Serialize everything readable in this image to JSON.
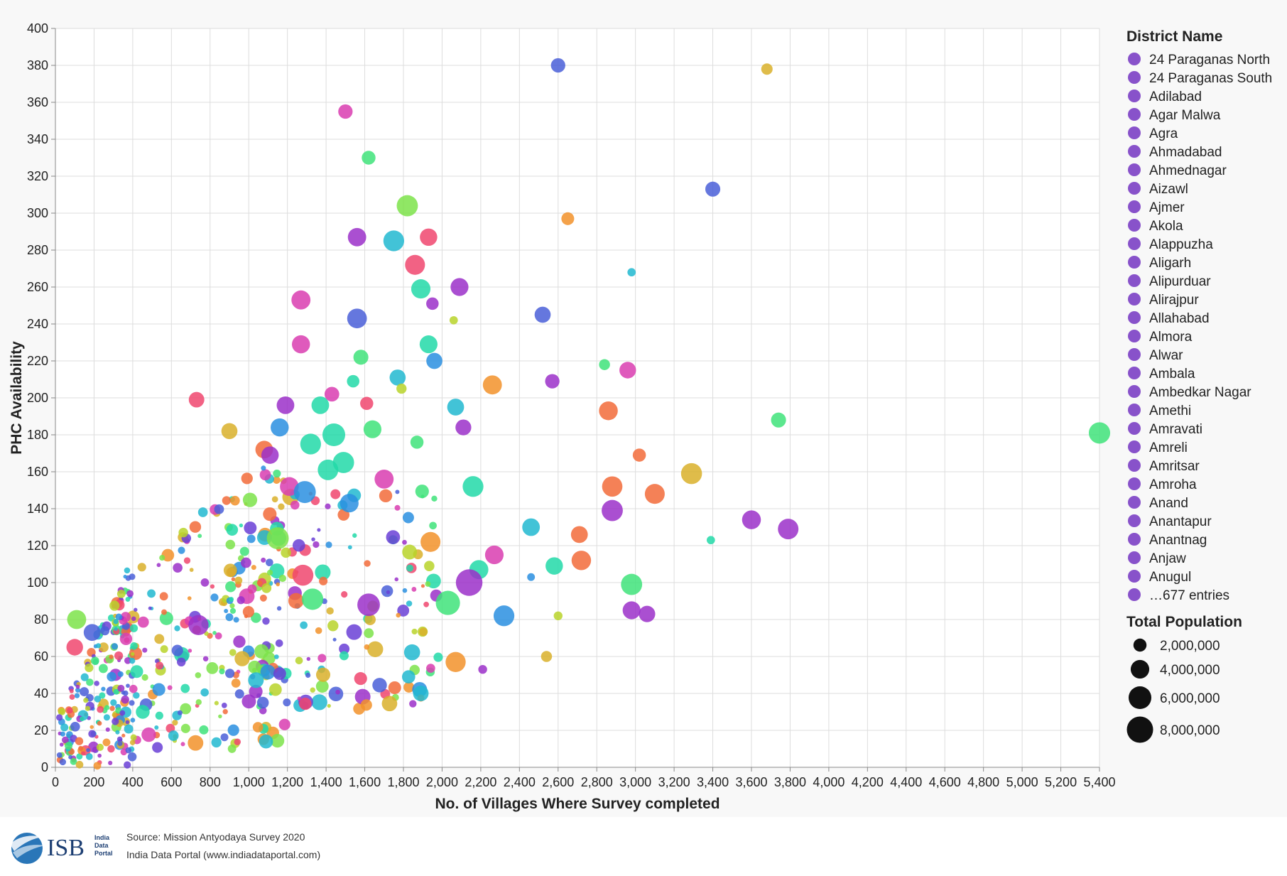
{
  "chart_data": {
    "type": "scatter",
    "xlabel": "No. of Villages Where Survey  completed",
    "ylabel": "PHC Availability",
    "xlim": [
      0,
      5400
    ],
    "ylim": [
      0,
      400
    ],
    "xticks": [
      0,
      200,
      400,
      600,
      800,
      1000,
      1200,
      1400,
      1600,
      1800,
      2000,
      2200,
      2400,
      2600,
      2800,
      3000,
      3200,
      3400,
      3600,
      3800,
      4000,
      4200,
      4400,
      4600,
      4800,
      5000,
      5200,
      5400
    ],
    "xtick_labels": [
      "0",
      "200",
      "400",
      "600",
      "800",
      "1,000",
      "1,200",
      "1,400",
      "1,600",
      "1,800",
      "2,000",
      "2,200",
      "2,400",
      "2,600",
      "2,800",
      "3,000",
      "3,200",
      "3,400",
      "3,600",
      "3,800",
      "4,000",
      "4,200",
      "4,400",
      "4,600",
      "4,800",
      "5,000",
      "5,200",
      "5,400"
    ],
    "yticks": [
      0,
      20,
      40,
      60,
      80,
      100,
      120,
      140,
      160,
      180,
      200,
      220,
      240,
      260,
      280,
      300,
      320,
      340,
      360,
      380,
      400
    ],
    "grid": true,
    "legend_color": {
      "title": "District Name",
      "entries": [
        "24 Paraganas North",
        "24 Paraganas South",
        "Adilabad",
        "Agar Malwa",
        "Agra",
        "Ahmadabad",
        "Ahmednagar",
        "Aizawl",
        "Ajmer",
        "Akola",
        "Alappuzha",
        "Aligarh",
        "Alipurduar",
        "Alirajpur",
        "Allahabad",
        "Almora",
        "Alwar",
        "Ambala",
        "Ambedkar Nagar",
        "Amethi",
        "Amravati",
        "Amreli",
        "Amritsar",
        "Amroha",
        "Anand",
        "Anantapur",
        "Anantnag",
        "Anjaw",
        "Anugul",
        "…677 entries"
      ],
      "swatch_color": "#7b3fc4"
    },
    "legend_size": {
      "title": "Total Population",
      "entries": [
        {
          "label": "2,000,000",
          "value": 2000000
        },
        {
          "label": "4,000,000",
          "value": 4000000
        },
        {
          "label": "6,000,000",
          "value": 6000000
        },
        {
          "label": "8,000,000",
          "value": 8000000
        }
      ]
    },
    "palette": [
      "#6a3fd6",
      "#9b30c9",
      "#d93db0",
      "#f0466e",
      "#f26b3a",
      "#f2922a",
      "#d9b02a",
      "#b8d42a",
      "#7de34a",
      "#3fe37a",
      "#22d9a8",
      "#21b8d0",
      "#2a8fe0",
      "#4a5fd8"
    ],
    "highlight_points": [
      {
        "x": 2600,
        "y": 380,
        "pop": 2400000,
        "color": "#4a5fd8"
      },
      {
        "x": 3680,
        "y": 378,
        "pop": 1500000,
        "color": "#d9b02a"
      },
      {
        "x": 1500,
        "y": 355,
        "pop": 2400000,
        "color": "#d93db0"
      },
      {
        "x": 1620,
        "y": 330,
        "pop": 2200000,
        "color": "#3fe37a"
      },
      {
        "x": 3400,
        "y": 313,
        "pop": 2600000,
        "color": "#4a5fd8"
      },
      {
        "x": 1820,
        "y": 304,
        "pop": 5200000,
        "color": "#7de34a"
      },
      {
        "x": 2650,
        "y": 297,
        "pop": 1900000,
        "color": "#f2922a"
      },
      {
        "x": 1560,
        "y": 287,
        "pop": 3900000,
        "color": "#9b30c9"
      },
      {
        "x": 1750,
        "y": 285,
        "pop": 5000000,
        "color": "#21b8d0"
      },
      {
        "x": 1930,
        "y": 287,
        "pop": 3500000,
        "color": "#f0466e"
      },
      {
        "x": 1860,
        "y": 272,
        "pop": 4600000,
        "color": "#f0466e"
      },
      {
        "x": 2980,
        "y": 268,
        "pop": 800000,
        "color": "#21b8d0"
      },
      {
        "x": 1890,
        "y": 259,
        "pop": 4300000,
        "color": "#22d9a8"
      },
      {
        "x": 2090,
        "y": 260,
        "pop": 3700000,
        "color": "#9b30c9"
      },
      {
        "x": 1270,
        "y": 253,
        "pop": 4200000,
        "color": "#d93db0"
      },
      {
        "x": 1950,
        "y": 251,
        "pop": 1800000,
        "color": "#9b30c9"
      },
      {
        "x": 1560,
        "y": 243,
        "pop": 4500000,
        "color": "#4a5fd8"
      },
      {
        "x": 2520,
        "y": 245,
        "pop": 3000000,
        "color": "#4a5fd8"
      },
      {
        "x": 2060,
        "y": 242,
        "pop": 800000,
        "color": "#b8d42a"
      },
      {
        "x": 1270,
        "y": 229,
        "pop": 3800000,
        "color": "#d93db0"
      },
      {
        "x": 1930,
        "y": 229,
        "pop": 3700000,
        "color": "#22d9a8"
      },
      {
        "x": 1580,
        "y": 222,
        "pop": 2600000,
        "color": "#3fe37a"
      },
      {
        "x": 1960,
        "y": 220,
        "pop": 3000000,
        "color": "#2a8fe0"
      },
      {
        "x": 2840,
        "y": 218,
        "pop": 1400000,
        "color": "#3fe37a"
      },
      {
        "x": 2960,
        "y": 215,
        "pop": 3200000,
        "color": "#d93db0"
      },
      {
        "x": 1770,
        "y": 211,
        "pop": 3000000,
        "color": "#21b8d0"
      },
      {
        "x": 1540,
        "y": 209,
        "pop": 1800000,
        "color": "#22d9a8"
      },
      {
        "x": 2570,
        "y": 209,
        "pop": 2400000,
        "color": "#9b30c9"
      },
      {
        "x": 2260,
        "y": 207,
        "pop": 4200000,
        "color": "#f2922a"
      },
      {
        "x": 1790,
        "y": 205,
        "pop": 1200000,
        "color": "#b8d42a"
      },
      {
        "x": 1430,
        "y": 202,
        "pop": 2500000,
        "color": "#d93db0"
      },
      {
        "x": 730,
        "y": 199,
        "pop": 2800000,
        "color": "#f0466e"
      },
      {
        "x": 1610,
        "y": 197,
        "pop": 2000000,
        "color": "#f0466e"
      },
      {
        "x": 1190,
        "y": 196,
        "pop": 3600000,
        "color": "#9b30c9"
      },
      {
        "x": 1370,
        "y": 196,
        "pop": 3600000,
        "color": "#22d9a8"
      },
      {
        "x": 2070,
        "y": 195,
        "pop": 3300000,
        "color": "#21b8d0"
      },
      {
        "x": 2860,
        "y": 193,
        "pop": 4100000,
        "color": "#f26b3a"
      },
      {
        "x": 3740,
        "y": 188,
        "pop": 2600000,
        "color": "#3fe37a"
      },
      {
        "x": 5400,
        "y": 181,
        "pop": 5300000,
        "color": "#3fe37a"
      },
      {
        "x": 1160,
        "y": 184,
        "pop": 3800000,
        "color": "#2a8fe0"
      },
      {
        "x": 2110,
        "y": 184,
        "pop": 2900000,
        "color": "#9b30c9"
      },
      {
        "x": 1440,
        "y": 180,
        "pop": 6000000,
        "color": "#22d9a8"
      },
      {
        "x": 1640,
        "y": 183,
        "pop": 3700000,
        "color": "#3fe37a"
      },
      {
        "x": 900,
        "y": 182,
        "pop": 3000000,
        "color": "#d9b02a"
      },
      {
        "x": 1870,
        "y": 176,
        "pop": 2000000,
        "color": "#3fe37a"
      },
      {
        "x": 1320,
        "y": 175,
        "pop": 5000000,
        "color": "#22d9a8"
      },
      {
        "x": 1080,
        "y": 172,
        "pop": 3600000,
        "color": "#f26b3a"
      },
      {
        "x": 1110,
        "y": 169,
        "pop": 3500000,
        "color": "#9b30c9"
      },
      {
        "x": 3020,
        "y": 169,
        "pop": 2000000,
        "color": "#f26b3a"
      },
      {
        "x": 1490,
        "y": 165,
        "pop": 5200000,
        "color": "#22d9a8"
      },
      {
        "x": 1410,
        "y": 161,
        "pop": 4900000,
        "color": "#22d9a8"
      },
      {
        "x": 3290,
        "y": 159,
        "pop": 5100000,
        "color": "#d9b02a"
      },
      {
        "x": 1700,
        "y": 156,
        "pop": 4200000,
        "color": "#d93db0"
      },
      {
        "x": 2160,
        "y": 152,
        "pop": 5000000,
        "color": "#22d9a8"
      },
      {
        "x": 1210,
        "y": 152,
        "pop": 4100000,
        "color": "#d93db0"
      },
      {
        "x": 1290,
        "y": 149,
        "pop": 5600000,
        "color": "#2a8fe0"
      },
      {
        "x": 2880,
        "y": 152,
        "pop": 4800000,
        "color": "#f26b3a"
      },
      {
        "x": 3100,
        "y": 148,
        "pop": 4600000,
        "color": "#f26b3a"
      },
      {
        "x": 1520,
        "y": 143,
        "pop": 4000000,
        "color": "#2a8fe0"
      },
      {
        "x": 2880,
        "y": 139,
        "pop": 5200000,
        "color": "#9b30c9"
      },
      {
        "x": 3600,
        "y": 134,
        "pop": 4100000,
        "color": "#9b30c9"
      },
      {
        "x": 3790,
        "y": 129,
        "pop": 4900000,
        "color": "#9b30c9"
      },
      {
        "x": 2460,
        "y": 130,
        "pop": 3600000,
        "color": "#21b8d0"
      },
      {
        "x": 2710,
        "y": 126,
        "pop": 3300000,
        "color": "#f26b3a"
      },
      {
        "x": 3390,
        "y": 123,
        "pop": 800000,
        "color": "#22d9a8"
      },
      {
        "x": 1150,
        "y": 124,
        "pop": 5600000,
        "color": "#7de34a"
      },
      {
        "x": 1940,
        "y": 122,
        "pop": 4600000,
        "color": "#f2922a"
      },
      {
        "x": 2270,
        "y": 115,
        "pop": 4000000,
        "color": "#d93db0"
      },
      {
        "x": 2720,
        "y": 112,
        "pop": 4400000,
        "color": "#f26b3a"
      },
      {
        "x": 2580,
        "y": 109,
        "pop": 3500000,
        "color": "#22d9a8"
      },
      {
        "x": 2190,
        "y": 107,
        "pop": 4200000,
        "color": "#22d9a8"
      },
      {
        "x": 1280,
        "y": 104,
        "pop": 5100000,
        "color": "#f0466e"
      },
      {
        "x": 2140,
        "y": 100,
        "pop": 8200000,
        "color": "#9b30c9"
      },
      {
        "x": 2980,
        "y": 99,
        "pop": 5200000,
        "color": "#3fe37a"
      },
      {
        "x": 2030,
        "y": 89,
        "pop": 6800000,
        "color": "#3fe37a"
      },
      {
        "x": 1620,
        "y": 88,
        "pop": 5900000,
        "color": "#9b30c9"
      },
      {
        "x": 1330,
        "y": 91,
        "pop": 5300000,
        "color": "#3fe37a"
      },
      {
        "x": 2320,
        "y": 82,
        "pop": 5000000,
        "color": "#2a8fe0"
      },
      {
        "x": 2980,
        "y": 85,
        "pop": 3700000,
        "color": "#9b30c9"
      },
      {
        "x": 3060,
        "y": 83,
        "pop": 3100000,
        "color": "#9b30c9"
      },
      {
        "x": 2070,
        "y": 57,
        "pop": 4700000,
        "color": "#f2922a"
      },
      {
        "x": 1890,
        "y": 40,
        "pop": 2800000,
        "color": "#21b8d0"
      },
      {
        "x": 2210,
        "y": 53,
        "pop": 900000,
        "color": "#9b30c9"
      },
      {
        "x": 2540,
        "y": 60,
        "pop": 1400000,
        "color": "#d9b02a"
      },
      {
        "x": 2600,
        "y": 82,
        "pop": 900000,
        "color": "#b8d42a"
      },
      {
        "x": 2460,
        "y": 103,
        "pop": 700000,
        "color": "#2a8fe0"
      },
      {
        "x": 740,
        "y": 77,
        "pop": 4700000,
        "color": "#9b30c9"
      },
      {
        "x": 110,
        "y": 80,
        "pop": 4200000,
        "color": "#7de34a"
      },
      {
        "x": 190,
        "y": 73,
        "pop": 3300000,
        "color": "#4a5fd8"
      },
      {
        "x": 100,
        "y": 65,
        "pop": 3200000,
        "color": "#f0466e"
      }
    ],
    "background_points_note": "dense cluster of ~600 smaller districts between x 0-2200 and y 0-200"
  },
  "footer": {
    "source_line": "Source:  Mission Antyodaya Survey 2020",
    "portal_line": "India Data Portal (www.indiadataportal.com)",
    "logo_text": "ISB",
    "logo_sub": [
      "India",
      "Data",
      "Portal"
    ]
  }
}
